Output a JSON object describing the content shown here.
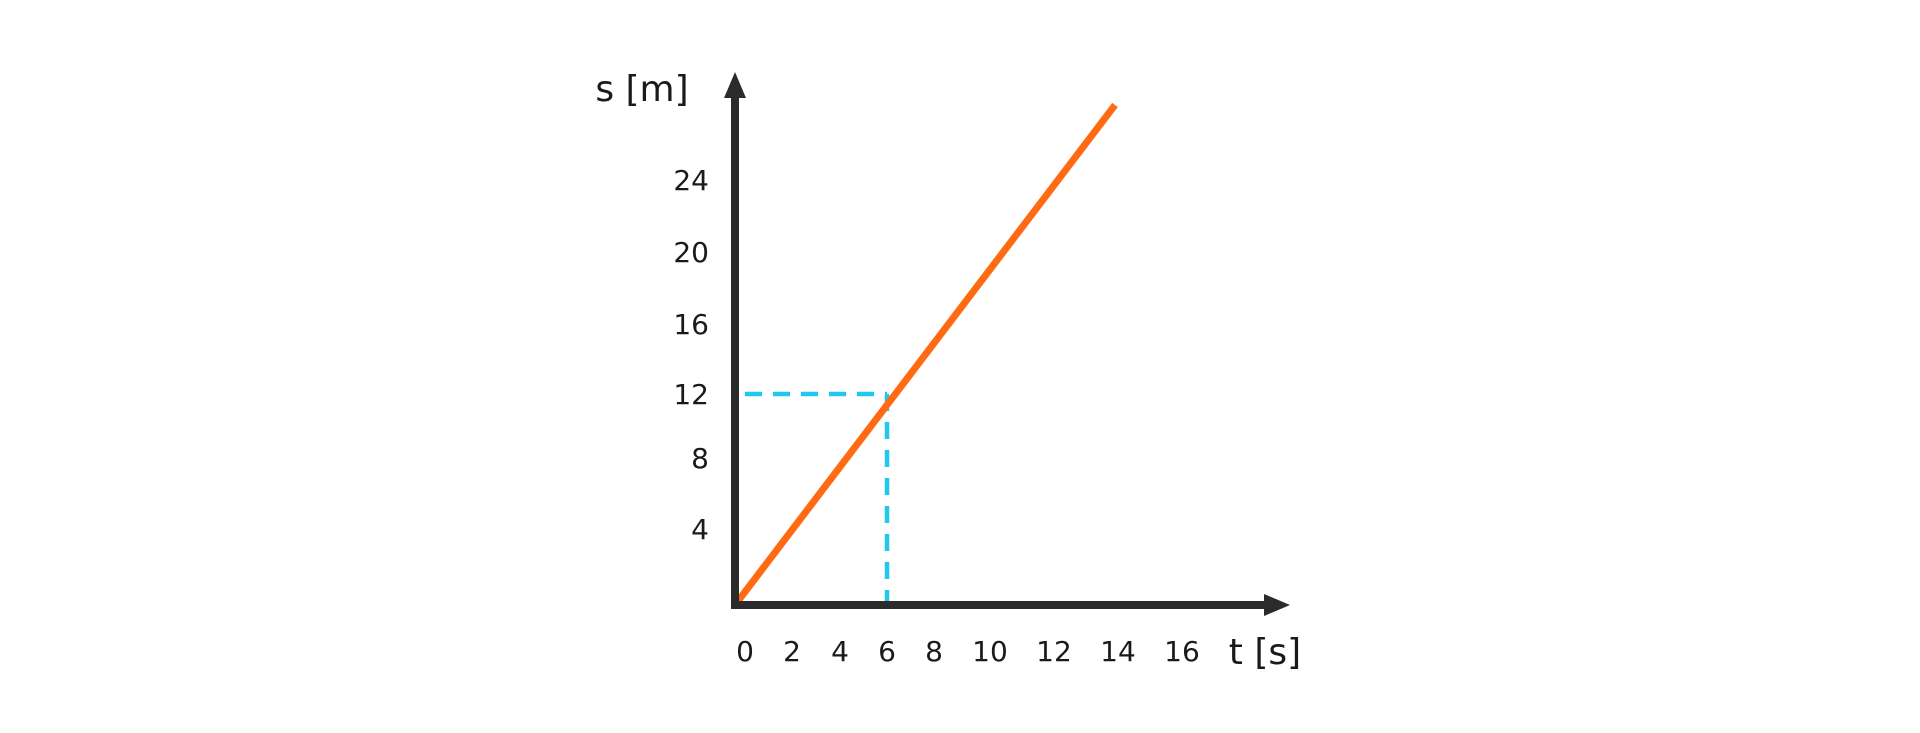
{
  "chart_data": {
    "type": "line",
    "xlabel": "t [s]",
    "ylabel": "s [m]",
    "xlim": [
      0,
      20
    ],
    "ylim": [
      0,
      32
    ],
    "x_ticks": [
      0,
      2,
      4,
      6,
      8,
      10,
      12,
      14,
      16
    ],
    "y_ticks": [
      4,
      8,
      12,
      16,
      20,
      24
    ],
    "grid": false,
    "series": [
      {
        "x": [
          0,
          16
        ],
        "y": [
          0,
          32
        ],
        "color": "#ff6a13"
      }
    ],
    "annotations": [
      {
        "type": "dashed-guide",
        "x": 6,
        "y": 12,
        "color": "#1ec8f0"
      }
    ],
    "axis_color": "#2b2b2b"
  }
}
